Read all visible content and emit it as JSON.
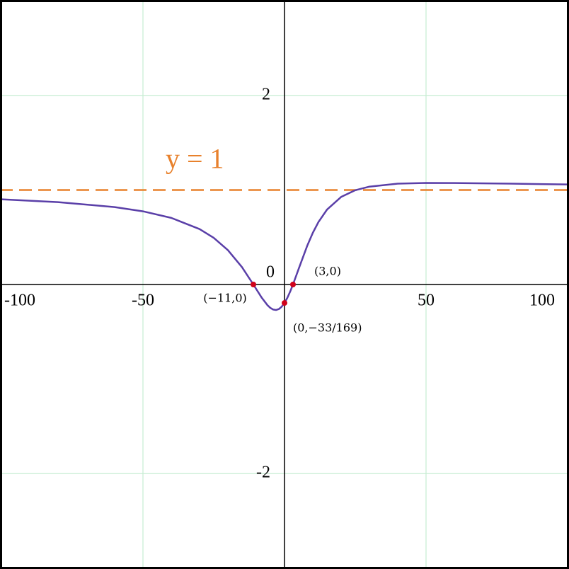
{
  "chart_data": {
    "type": "line",
    "x": [
      -100,
      -80,
      -60,
      -50,
      -40,
      -30,
      -25,
      -20,
      -15,
      -11,
      -8,
      -6,
      -5,
      -4,
      -3,
      -2,
      -1,
      0,
      1,
      2,
      3,
      5,
      8,
      10,
      12,
      15,
      20,
      25,
      30,
      40,
      50,
      60,
      80,
      100
    ],
    "values": [
      0.9015,
      0.8718,
      0.819,
      0.7744,
      0.7049,
      0.5865,
      0.4937,
      0.3638,
      0.1827,
      0,
      -0.1416,
      -0.2195,
      -0.2474,
      -0.2649,
      -0.2697,
      -0.2601,
      -0.2353,
      -0.1953,
      -0.1412,
      -0.0751,
      0,
      0.1649,
      0.4077,
      0.5465,
      0.6613,
      0.7919,
      0.9262,
      0.9975,
      1.0355,
      1.0667,
      1.0742,
      1.0738,
      1.0667,
      1.0588
    ],
    "color": "#5a3fa8",
    "xlim": [
      -100.5,
      100.5
    ],
    "ylim": [
      -3.01,
      3.01
    ],
    "xticks": [
      -100,
      -50,
      0,
      50,
      100
    ],
    "yticks": [
      -2,
      2
    ],
    "grid": true,
    "asymptote": {
      "y": 1,
      "label": "y = 1",
      "color": "#e8812c"
    },
    "points": [
      {
        "x": -11,
        "y": 0,
        "label": "(−11,0)"
      },
      {
        "x": 3,
        "y": 0,
        "label": "(3,0)"
      },
      {
        "x": 0,
        "y": -0.1953,
        "label": "(0,−33/169)"
      }
    ],
    "point_color": "#d0021b"
  }
}
